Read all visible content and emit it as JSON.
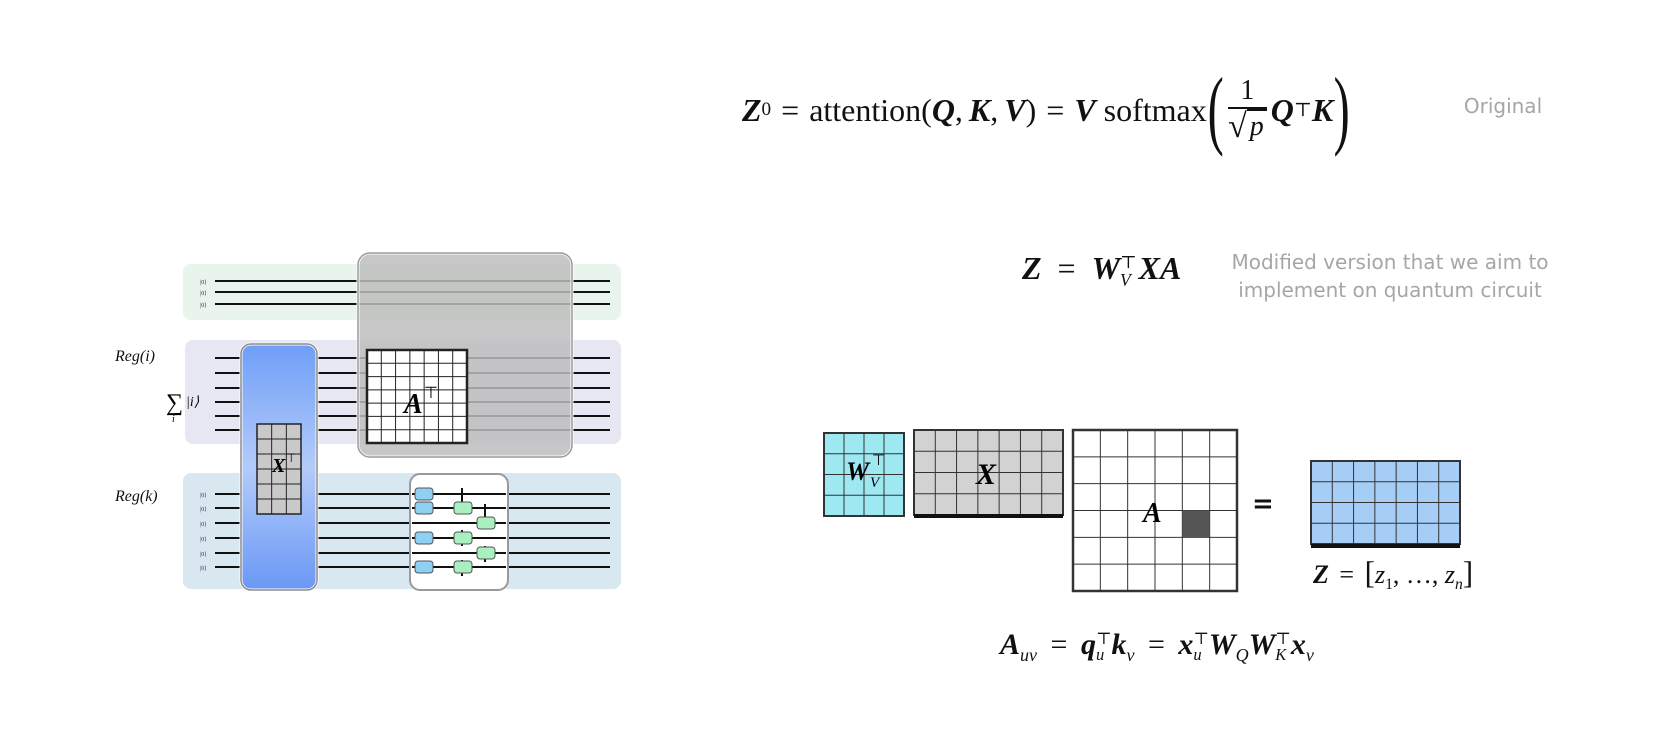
{
  "equations": {
    "original": {
      "lhs": "Z",
      "lhs_sub": "0",
      "eq1": "=",
      "func": "attention(",
      "q": "Q",
      "comma1": ",",
      "k": "K",
      "comma2": ",",
      "v": "V",
      "close": ")",
      "eq2": "=",
      "v2": "V",
      "softmax": "softmax",
      "lparen": "(",
      "frac_num": "1",
      "sqrt_symbol": "√",
      "sqrt_arg": "p",
      "q2": "Q",
      "transpose": "⊤",
      "k2": "K",
      "rparen": ")"
    },
    "modified": {
      "lhs": "Z",
      "eq": "=",
      "w": "W",
      "w_sub": "V",
      "w_sup": "⊤",
      "rest": "XA"
    },
    "z_def": {
      "lhs": "Z",
      "eq": "=",
      "lbracket": "[",
      "z1": "z",
      "z1_sub": "1",
      "dots": ", …, ",
      "zn": "z",
      "zn_sub": "n",
      "rbracket": "]"
    },
    "a_def": {
      "a": "A",
      "a_sub": "uv",
      "eq1": "=",
      "q": "q",
      "q_sub": "u",
      "q_sup": "⊤",
      "k": "k",
      "k_sub": "v",
      "eq2": "=",
      "x": "x",
      "x_sub": "u",
      "x_sup": "⊤",
      "wq": "W",
      "wq_sub": "Q",
      "wk": "W",
      "wk_sub": "K",
      "wk_sup": "⊤",
      "x2": "x",
      "x2_sub": "v"
    }
  },
  "notes": {
    "original": "Original",
    "modified_line1": "Modified version that we aim to",
    "modified_line2": "implement on quantum circuit"
  },
  "matrix_labels": {
    "wv": "W",
    "wv_sub": "V",
    "wv_sup": "⊤",
    "x": "X",
    "a": "A",
    "equals": "="
  },
  "circuit": {
    "reg_i": "Reg(i)",
    "reg_k": "Reg(k)",
    "sum_symbol": "∑",
    "sum_sub": "i",
    "ket_i": "|i⟩",
    "ket_zero": "|0⟩",
    "xt_label": "X",
    "xt_sup": "⊤",
    "at_label": "A",
    "at_sup": "⊤"
  },
  "colors": {
    "wv_fill": "#9ee8f2",
    "x_fill": "#d2d2d2",
    "z_fill": "#a6cdf5",
    "a_highlight": "#555555",
    "note_text": "#a6a6a6",
    "ancilla_band": "#e7f3ec",
    "reg_i_band": "#e6e7f2",
    "reg_k_band": "#d9e6f0",
    "blue_gate": "#6a9cf5",
    "gray_gate": "#b9b9b9",
    "cyan_box": "#8ed0f2",
    "green_box": "#a8f0bf"
  }
}
